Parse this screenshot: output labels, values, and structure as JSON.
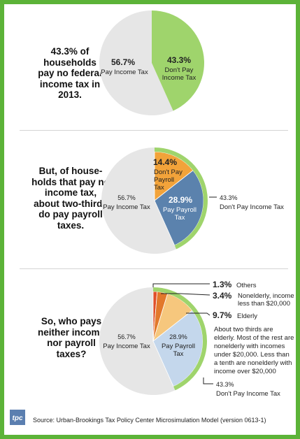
{
  "panel1_text": [
    "43.3% of",
    "households",
    "pay no federal",
    "income tax in",
    "2013."
  ],
  "panel2_text": [
    "But, of house-",
    "holds that pay no",
    "income tax,",
    "about two-thirds",
    "do pay payroll",
    "taxes."
  ],
  "panel3_text": [
    "So, who pays",
    "neither income",
    "nor payroll",
    "taxes?"
  ],
  "source": "Source: Urban-Brookings Tax Policy Center Microsimulation Model (version 0613-1)",
  "logo_text": "tpc",
  "colors": {
    "border_green": "#5cb338",
    "light_green": "#9fd46c",
    "grey": "#e6e6e6",
    "orange": "#f2a33a",
    "blue": "#5b82ad",
    "light_blue": "#c4d7ec",
    "light_orange": "#f6c77d",
    "dark_orange": "#e2782b",
    "red_orange": "#e04f2b"
  },
  "chart_data": [
    {
      "type": "pie",
      "title": "",
      "slices": [
        {
          "pct": "56.7%",
          "label": "Pay Income Tax",
          "value": 56.7
        },
        {
          "pct": "43.3%",
          "label": "Don't Pay Income Tax",
          "value": 43.3
        }
      ]
    },
    {
      "type": "pie",
      "title": "",
      "slices": [
        {
          "pct": "56.7%",
          "label": "Pay Income Tax",
          "value": 56.7
        },
        {
          "pct": "14.4%",
          "label": "Don't Pay Payroll Tax",
          "value": 14.4
        },
        {
          "pct": "28.9%",
          "label": "Pay Payroll Tax",
          "value": 28.9
        }
      ],
      "outer_ring": {
        "pct": "43.3%",
        "label": "Don't Pay Income Tax",
        "value": 43.3
      }
    },
    {
      "type": "pie",
      "title": "",
      "slices": [
        {
          "pct": "56.7%",
          "label": "Pay Income Tax",
          "value": 56.7
        },
        {
          "pct": "1.3%",
          "label": "Others",
          "value": 1.3
        },
        {
          "pct": "3.4%",
          "label": "Nonelderly, income less than $20,000",
          "value": 3.4
        },
        {
          "pct": "9.7%",
          "label": "Elderly",
          "value": 9.7
        },
        {
          "pct": "28.9%",
          "label": "Pay Payroll Tax",
          "value": 28.9
        }
      ],
      "outer_ring": {
        "pct": "43.3%",
        "label": "Don't Pay Income Tax",
        "value": 43.3
      },
      "annotation": [
        "About two thirds are",
        "elderly. Most of the rest are",
        "nonelderly with incomes",
        "under $20,000. Less than",
        "a tenth are nonelderly with",
        "income over $20,000"
      ]
    }
  ]
}
